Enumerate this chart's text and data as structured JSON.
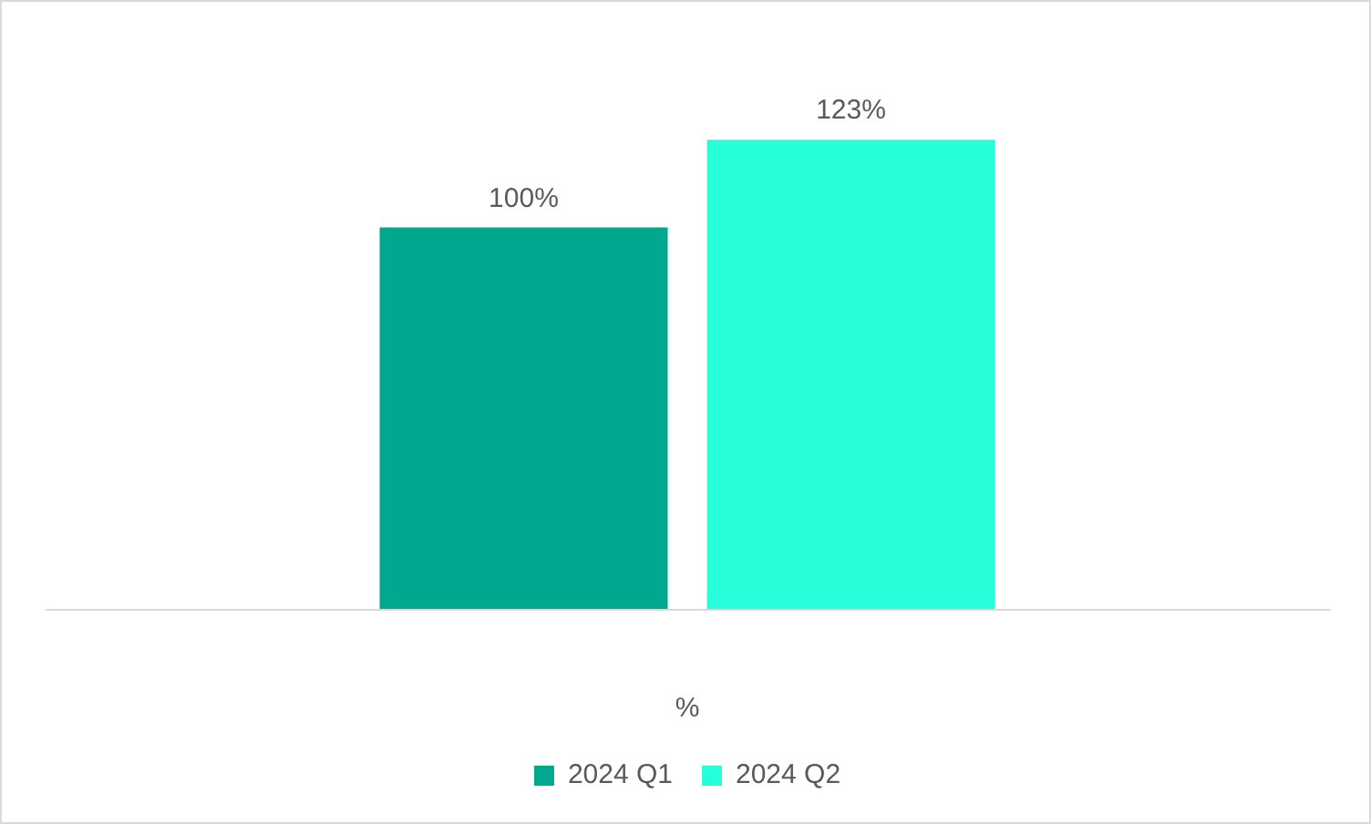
{
  "chart_data": {
    "type": "bar",
    "categories": [
      null
    ],
    "xlabel": "%",
    "series": [
      {
        "name": "2024 Q1",
        "color": "#00a88f",
        "values": [
          100
        ],
        "value_labels": [
          "100%"
        ]
      },
      {
        "name": "2024 Q2",
        "color": "#27ffdb",
        "values": [
          123
        ],
        "value_labels": [
          "123%"
        ]
      }
    ],
    "grid": false,
    "legend": "bottom"
  }
}
